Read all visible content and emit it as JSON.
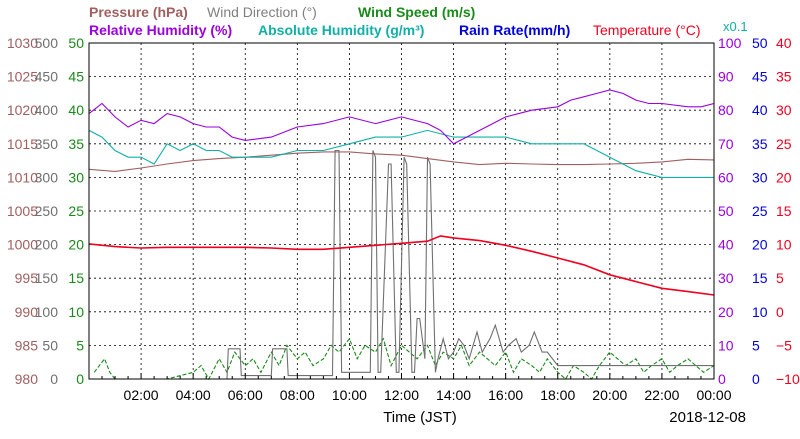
{
  "chart_data": {
    "type": "line",
    "legend": {
      "row1": [
        {
          "label": "Pressure (hPa)",
          "color": "#a06060"
        },
        {
          "label": "Wind Direction (°)",
          "color": "#808080"
        },
        {
          "label": "Wind Speed (m/s)",
          "color": "#1a8a1a"
        }
      ],
      "row2": [
        {
          "label": "Relative Humidity (%)",
          "color": "#9a00e0"
        },
        {
          "label": "Absolute Humidity (g/m³)",
          "color": "#10b0a8"
        },
        {
          "label": "Rain Rate(mm/h)",
          "color": "#0000dd"
        },
        {
          "label": "Temperature (°C)",
          "color": "#f00020"
        }
      ],
      "rain_multiplier": "x0.1"
    },
    "xlabel": "Time (JST)",
    "date_label": "2018-12-08",
    "xlim": [
      0,
      24
    ],
    "x_ticks": [
      2,
      4,
      6,
      8,
      10,
      12,
      14,
      16,
      18,
      20,
      22,
      24
    ],
    "x_tick_labels": [
      "02:00",
      "04:00",
      "06:00",
      "08:00",
      "10:00",
      "12:00",
      "14:00",
      "16:00",
      "18:00",
      "20:00",
      "22:00",
      "00:00"
    ],
    "grid": true,
    "axes": {
      "pressure": {
        "min": 980,
        "max": 1030,
        "labels": [
          "980",
          "985",
          "990",
          "995",
          "1000",
          "1005",
          "1010",
          "1015",
          "1020",
          "1025",
          "1030"
        ],
        "color": "#a06060"
      },
      "wind_direction": {
        "min": 0,
        "max": 500,
        "labels": [
          "0",
          "50",
          "100",
          "150",
          "200",
          "250",
          "300",
          "350",
          "400",
          "450",
          "500"
        ],
        "color": "#707070"
      },
      "wind_speed": {
        "min": 0,
        "max": 50,
        "labels": [
          "0",
          "5",
          "10",
          "15",
          "20",
          "25",
          "30",
          "35",
          "40",
          "45",
          "50"
        ],
        "color": "#1a8a1a"
      },
      "relative_humidity": {
        "min": 0,
        "max": 100,
        "labels": [
          "0",
          "10",
          "20",
          "30",
          "40",
          "50",
          "60",
          "70",
          "80",
          "90",
          "100"
        ],
        "color": "#9a00e0"
      },
      "rain_rate": {
        "min": 0,
        "max": 50,
        "labels": [
          "0",
          "5",
          "10",
          "15",
          "20",
          "25",
          "30",
          "35",
          "40",
          "45",
          "50"
        ],
        "color": "#0000dd"
      },
      "temperature": {
        "min": -10,
        "max": 40,
        "labels": [
          "−10",
          "−5",
          "0",
          "5",
          "10",
          "15",
          "20",
          "25",
          "30",
          "35",
          "40"
        ],
        "color": "#f00020"
      }
    },
    "series": [
      {
        "name": "Relative Humidity (%)",
        "axis": "relative_humidity",
        "color": "#9a00e0",
        "x": [
          0,
          0.5,
          1,
          1.5,
          2,
          2.5,
          3,
          3.5,
          4,
          4.5,
          5,
          5.5,
          6,
          7,
          8,
          9,
          10,
          11,
          12,
          13,
          13.5,
          14,
          14.5,
          15,
          16,
          17,
          18,
          18.5,
          19,
          19.5,
          20,
          20.5,
          21,
          21.5,
          22,
          23,
          23.5,
          24
        ],
        "y": [
          79,
          82,
          78,
          75,
          77,
          76,
          79,
          78,
          76,
          75,
          75,
          72,
          71,
          72,
          75,
          76,
          78,
          76,
          78,
          76,
          74,
          70,
          72,
          74,
          78,
          80,
          81,
          83,
          84,
          85,
          86,
          85,
          83,
          82,
          82,
          81,
          81,
          82
        ]
      },
      {
        "name": "Absolute Humidity (g/m³)",
        "axis": "wind_speed",
        "color": "#10b0a8",
        "x": [
          0,
          0.5,
          1,
          1.5,
          2,
          2.5,
          3,
          3.5,
          4,
          4.5,
          5,
          5.5,
          6,
          7,
          8,
          9,
          10,
          11,
          12,
          13,
          14,
          15,
          16,
          17,
          18,
          19,
          19.5,
          20,
          20.5,
          21,
          22,
          23,
          24
        ],
        "y": [
          37,
          36,
          34,
          33,
          33,
          32,
          35,
          34,
          35,
          34,
          34,
          33,
          33,
          33,
          34,
          34,
          35,
          36,
          36,
          37,
          36,
          36,
          36,
          35,
          35,
          35,
          34,
          33,
          32,
          31,
          30,
          30,
          30
        ]
      },
      {
        "name": "Pressure (hPa)",
        "axis": "pressure",
        "color": "#a06060",
        "x": [
          0,
          1,
          2,
          3,
          4,
          5,
          6,
          7,
          8,
          9,
          10,
          11,
          12,
          13,
          14,
          15,
          16,
          17,
          18,
          19,
          20,
          21,
          22,
          23,
          24
        ],
        "y": [
          1011.2,
          1010.9,
          1011.4,
          1012.0,
          1012.5,
          1012.8,
          1013.0,
          1013.3,
          1013.6,
          1013.8,
          1013.8,
          1013.5,
          1013.3,
          1012.8,
          1012.3,
          1011.9,
          1012.1,
          1012.0,
          1011.9,
          1011.9,
          1012.0,
          1012.1,
          1012.3,
          1012.7,
          1012.6
        ]
      },
      {
        "name": "Temperature (°C)",
        "axis": "temperature",
        "color": "#f00020",
        "x": [
          0,
          1,
          2,
          3,
          4,
          5,
          6,
          7,
          8,
          9,
          10,
          11,
          12,
          13,
          13.5,
          14,
          15,
          16,
          17,
          18,
          19,
          20,
          21,
          22,
          23,
          24
        ],
        "y": [
          10.1,
          9.7,
          9.5,
          9.6,
          9.6,
          9.6,
          9.6,
          9.5,
          9.3,
          9.3,
          9.6,
          9.9,
          10.2,
          10.5,
          11.3,
          11.0,
          10.6,
          9.9,
          9.0,
          8.0,
          7.0,
          5.5,
          4.5,
          3.5,
          3.0,
          2.5
        ]
      },
      {
        "name": "Wind Direction (°)",
        "axis": "wind_direction",
        "color": "#707070",
        "x": [
          0,
          5.3,
          5.35,
          5.8,
          5.85,
          7.0,
          7.05,
          7.6,
          7.65,
          9.35,
          9.45,
          9.6,
          9.7,
          10.8,
          10.9,
          11.0,
          11.1,
          11.2,
          11.5,
          11.6,
          11.8,
          11.9,
          12.1,
          12.2,
          12.4,
          12.5,
          12.6,
          12.7,
          12.9,
          13.0,
          13.1,
          13.3,
          13.4,
          13.6,
          13.8,
          14.0,
          14.2,
          14.4,
          14.6,
          14.9,
          15.1,
          15.4,
          15.6,
          15.9,
          16.1,
          16.4,
          16.6,
          16.9,
          17.1,
          17.4,
          17.6,
          18.0,
          18.5,
          19.0,
          19.5,
          20.0,
          21.0,
          22.0,
          23.0,
          24.0
        ],
        "y": [
          null,
          0,
          45,
          45,
          5,
          5,
          45,
          45,
          5,
          5,
          340,
          340,
          10,
          10,
          340,
          330,
          10,
          10,
          320,
          320,
          10,
          10,
          330,
          320,
          10,
          10,
          90,
          90,
          30,
          330,
          320,
          10,
          30,
          60,
          30,
          40,
          60,
          50,
          30,
          70,
          40,
          60,
          80,
          40,
          50,
          60,
          40,
          50,
          70,
          40,
          40,
          20,
          20,
          20,
          20,
          20,
          20,
          20,
          20,
          20
        ]
      },
      {
        "name": "Wind Speed (m/s)",
        "axis": "wind_speed",
        "color": "#1a8a1a",
        "x": [
          0.2,
          0.4,
          0.6,
          0.8,
          1.0,
          2.0,
          3.0,
          4.0,
          4.3,
          4.6,
          5.0,
          5.3,
          5.6,
          6.0,
          6.3,
          6.6,
          7.0,
          7.3,
          7.6,
          8.0,
          8.3,
          8.6,
          9.0,
          9.3,
          9.6,
          10.0,
          10.3,
          10.6,
          11.0,
          11.3,
          11.6,
          12.0,
          12.3,
          12.6,
          13.0,
          13.3,
          13.6,
          14.0,
          14.3,
          14.6,
          15.0,
          15.3,
          15.6,
          16.0,
          16.3,
          16.6,
          17.0,
          17.3,
          17.6,
          18.0,
          18.3,
          18.6,
          19.0,
          19.3,
          19.6,
          20.0,
          20.3,
          20.6,
          21.0,
          21.3,
          21.6,
          22.0,
          22.3,
          22.6,
          23.0,
          23.3,
          23.6,
          24.0
        ],
        "y": [
          1,
          2,
          3,
          1,
          0,
          0,
          0,
          1,
          2,
          0,
          3,
          1,
          4,
          2,
          3,
          1,
          4,
          2,
          5,
          3,
          4,
          2,
          3,
          5,
          4,
          6,
          3,
          5,
          4,
          6,
          2,
          5,
          4,
          3,
          5,
          2,
          4,
          3,
          5,
          2,
          4,
          3,
          2,
          4,
          1,
          3,
          2,
          1,
          3,
          1,
          0,
          2,
          1,
          0,
          2,
          4,
          3,
          2,
          3,
          1,
          2,
          3,
          1,
          2,
          3,
          2,
          1,
          2
        ]
      },
      {
        "name": "Rain Rate(mm/h)",
        "axis": "rain_rate",
        "color": "#0000dd",
        "x": [
          0,
          24
        ],
        "y": [
          0,
          0
        ]
      }
    ]
  }
}
